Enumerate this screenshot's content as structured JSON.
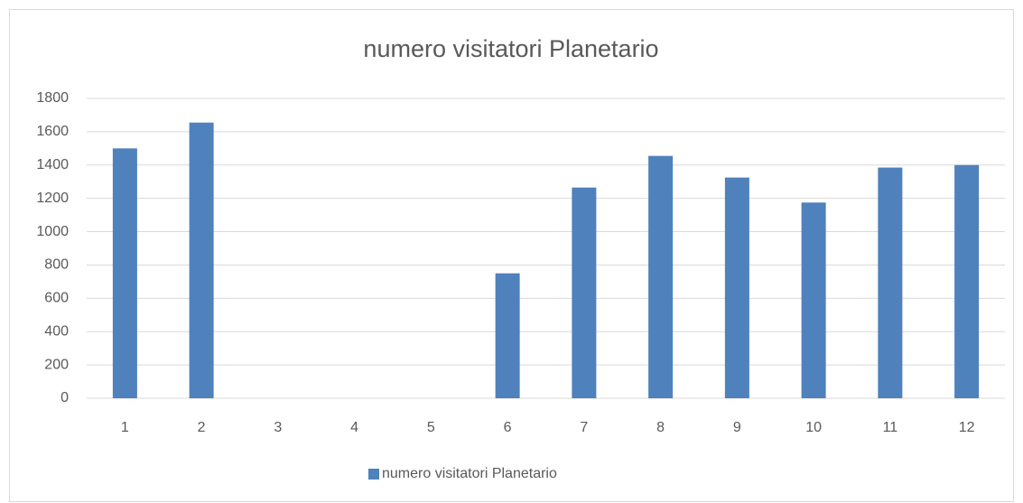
{
  "chart_data": {
    "type": "bar",
    "title": "numero visitatori Planetario",
    "categories": [
      "1",
      "2",
      "3",
      "4",
      "5",
      "6",
      "7",
      "8",
      "9",
      "10",
      "11",
      "12"
    ],
    "series": [
      {
        "name": "numero visitatori Planetario",
        "color": "#4f81bd",
        "values": [
          1500,
          1655,
          0,
          0,
          0,
          750,
          1265,
          1455,
          1325,
          1175,
          1385,
          1400
        ]
      }
    ],
    "ylim": [
      0,
      1800
    ],
    "yticks": [
      0,
      200,
      400,
      600,
      800,
      1000,
      1200,
      1400,
      1600,
      1800
    ],
    "grid": true,
    "legend": "bottom"
  }
}
